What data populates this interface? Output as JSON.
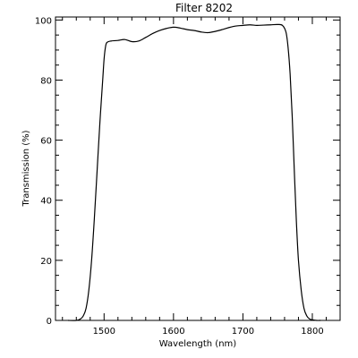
{
  "chart_data": {
    "type": "line",
    "title": "Filter 8202",
    "xlabel": "Wavelength (nm)",
    "ylabel": "Transmission (%)",
    "xlim": [
      1430,
      1840
    ],
    "ylim": [
      0,
      101
    ],
    "x_major_ticks": [
      1500,
      1600,
      1700,
      1800
    ],
    "x_minor_step": 20,
    "y_major_ticks": [
      0,
      20,
      40,
      60,
      80,
      100
    ],
    "y_minor_step": 5,
    "x_tick_labels": [
      "1500",
      "1600",
      "1700",
      "1800"
    ],
    "y_tick_labels": [
      "0",
      "20",
      "40",
      "60",
      "80",
      "100"
    ],
    "grid": false,
    "legend": "none",
    "line_color": "#000000",
    "series": [
      {
        "x": [
          1448,
          1460,
          1466,
          1470,
          1474,
          1478,
          1482,
          1486,
          1490,
          1494,
          1498,
          1500,
          1502,
          1504,
          1510,
          1520,
          1530,
          1540,
          1550,
          1560,
          1570,
          1580,
          1590,
          1600,
          1610,
          1620,
          1630,
          1640,
          1650,
          1660,
          1670,
          1680,
          1690,
          1700,
          1710,
          1720,
          1730,
          1740,
          1750,
          1757,
          1762,
          1765,
          1768,
          1771,
          1774,
          1777,
          1780,
          1784,
          1788,
          1792,
          1796,
          1800,
          1806,
          1812
        ],
        "y": [
          0,
          0,
          0.5,
          1.5,
          4,
          10,
          20,
          34,
          50,
          66,
          80,
          87,
          91,
          92.5,
          93,
          93.2,
          93.5,
          92.8,
          93,
          94.2,
          95.5,
          96.5,
          97.2,
          97.6,
          97.3,
          96.8,
          96.5,
          96,
          95.8,
          96.2,
          96.8,
          97.5,
          98,
          98.2,
          98.4,
          98.2,
          98.3,
          98.4,
          98.5,
          98.2,
          96,
          91,
          82,
          68,
          50,
          33,
          20,
          10,
          4,
          1.5,
          0.5,
          0.2,
          0,
          0
        ]
      }
    ]
  }
}
